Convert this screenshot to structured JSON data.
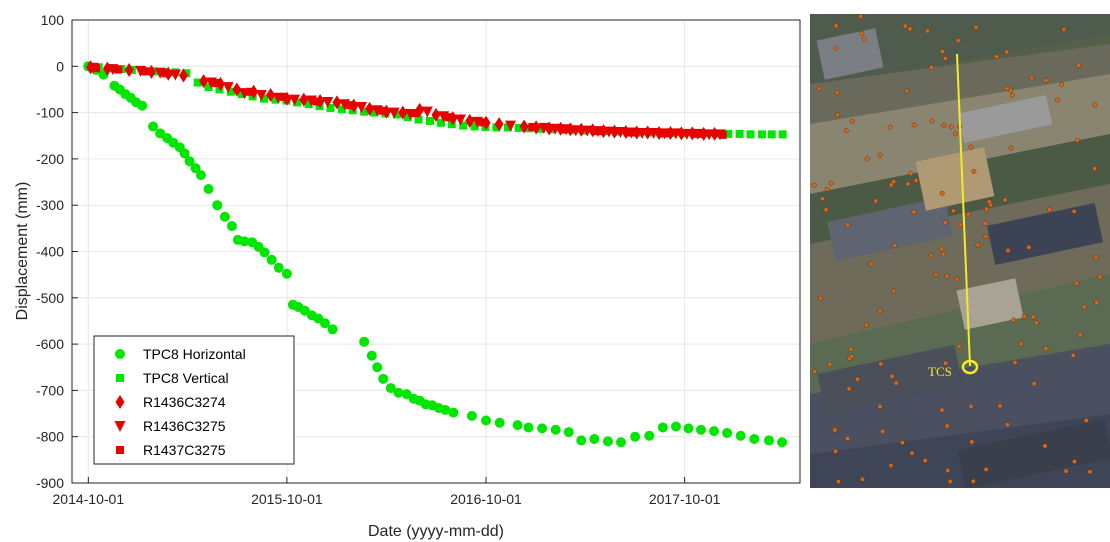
{
  "chart_data": {
    "type": "scatter",
    "title": "",
    "xlabel": "Date (yyyy-mm-dd)",
    "ylabel": "Displacement (mm)",
    "x_type": "date",
    "xlim": [
      "2014-09-01",
      "2018-05-01"
    ],
    "ylim": [
      -900,
      100
    ],
    "xticks": [
      "2014-10-01",
      "2015-10-01",
      "2016-10-01",
      "2017-10-01"
    ],
    "yticks": [
      100,
      0,
      -100,
      -200,
      -300,
      -400,
      -500,
      -600,
      -700,
      -800,
      -900
    ],
    "grid": true,
    "legend_position": "bottom-left",
    "series": [
      {
        "name": "TPC8 Horizontal",
        "marker": "circle",
        "color": "#00e600",
        "x": [
          "2014-10-01",
          "2014-10-15",
          "2014-10-29",
          "2014-11-18",
          "2014-11-28",
          "2014-12-08",
          "2014-12-18",
          "2014-12-28",
          "2015-01-08",
          "2015-01-28",
          "2015-02-10",
          "2015-02-23",
          "2015-03-06",
          "2015-03-18",
          "2015-03-27",
          "2015-04-05",
          "2015-04-16",
          "2015-04-26",
          "2015-05-10",
          "2015-05-26",
          "2015-06-09",
          "2015-06-22",
          "2015-07-03",
          "2015-07-15",
          "2015-07-29",
          "2015-08-10",
          "2015-08-21",
          "2015-09-03",
          "2015-09-16",
          "2015-10-01",
          "2015-10-12",
          "2015-10-22",
          "2015-11-03",
          "2015-11-16",
          "2015-11-28",
          "2015-12-10",
          "2015-12-24",
          "2016-02-20",
          "2016-03-05",
          "2016-03-15",
          "2016-03-26",
          "2016-04-09",
          "2016-04-23",
          "2016-05-08",
          "2016-05-21",
          "2016-06-01",
          "2016-06-12",
          "2016-06-24",
          "2016-07-06",
          "2016-07-18",
          "2016-08-02",
          "2016-09-05",
          "2016-10-01",
          "2016-10-26",
          "2016-11-28",
          "2016-12-18",
          "2017-01-12",
          "2017-02-06",
          "2017-03-02",
          "2017-03-25",
          "2017-04-18",
          "2017-05-13",
          "2017-06-06",
          "2017-07-02",
          "2017-07-28",
          "2017-08-22",
          "2017-09-15",
          "2017-10-08",
          "2017-10-31",
          "2017-11-24",
          "2017-12-18",
          "2018-01-12",
          "2018-02-06",
          "2018-03-05",
          "2018-03-29"
        ],
        "y": [
          0,
          -8,
          -18,
          -42,
          -50,
          -60,
          -68,
          -78,
          -85,
          -130,
          -145,
          -155,
          -165,
          -175,
          -188,
          -205,
          -220,
          -235,
          -265,
          -300,
          -325,
          -345,
          -375,
          -378,
          -380,
          -390,
          -402,
          -418,
          -435,
          -448,
          -515,
          -520,
          -528,
          -538,
          -545,
          -555,
          -568,
          -595,
          -625,
          -650,
          -675,
          -695,
          -705,
          -708,
          -718,
          -722,
          -730,
          -732,
          -738,
          -742,
          -748,
          -755,
          -765,
          -770,
          -775,
          -780,
          -782,
          -785,
          -790,
          -808,
          -805,
          -810,
          -812,
          -800,
          -798,
          -780,
          -778,
          -782,
          -785,
          -788,
          -792,
          -798,
          -805,
          -808,
          -812
        ]
      },
      {
        "name": "TPC8 Vertical",
        "marker": "square",
        "color": "#00e600",
        "x": [
          "2014-10-01",
          "2014-10-20",
          "2014-11-10",
          "2014-12-01",
          "2014-12-20",
          "2015-01-10",
          "2015-01-30",
          "2015-02-18",
          "2015-03-10",
          "2015-03-30",
          "2015-04-20",
          "2015-05-10",
          "2015-05-30",
          "2015-06-20",
          "2015-07-10",
          "2015-07-30",
          "2015-08-20",
          "2015-09-10",
          "2015-09-30",
          "2015-10-20",
          "2015-11-10",
          "2015-11-30",
          "2015-12-20",
          "2016-01-10",
          "2016-01-30",
          "2016-02-20",
          "2016-03-10",
          "2016-03-30",
          "2016-04-20",
          "2016-05-10",
          "2016-05-30",
          "2016-06-20",
          "2016-07-10",
          "2016-07-30",
          "2016-08-20",
          "2016-09-10",
          "2016-09-30",
          "2016-10-20",
          "2016-11-10",
          "2016-11-30",
          "2016-12-20",
          "2017-01-10",
          "2017-01-30",
          "2017-02-20",
          "2017-03-10",
          "2017-03-30",
          "2017-04-20",
          "2017-05-10",
          "2017-05-30",
          "2017-06-20",
          "2017-07-10",
          "2017-07-30",
          "2017-08-20",
          "2017-09-10",
          "2017-09-30",
          "2017-10-20",
          "2017-11-10",
          "2017-11-30",
          "2017-12-20",
          "2018-01-10",
          "2018-01-30",
          "2018-02-20",
          "2018-03-10",
          "2018-03-30"
        ],
        "y": [
          0,
          -2,
          -4,
          -6,
          -8,
          -10,
          -11,
          -12,
          -13,
          -15,
          -35,
          -45,
          -50,
          -55,
          -60,
          -65,
          -70,
          -72,
          -74,
          -78,
          -82,
          -86,
          -90,
          -93,
          -95,
          -98,
          -100,
          -102,
          -104,
          -110,
          -115,
          -118,
          -122,
          -125,
          -128,
          -130,
          -131,
          -132,
          -132,
          -133,
          -134,
          -135,
          -136,
          -137,
          -138,
          -139,
          -140,
          -140,
          -141,
          -142,
          -143,
          -143,
          -144,
          -144,
          -145,
          -145,
          -145,
          -146,
          -146,
          -146,
          -147,
          -147,
          -147,
          -147
        ]
      },
      {
        "name": "R1436C3274",
        "marker": "diamond",
        "color": "#e60000",
        "x": [
          "2014-10-05",
          "2014-11-05",
          "2014-12-15",
          "2015-01-25",
          "2015-02-25",
          "2015-03-25",
          "2015-05-01",
          "2015-06-01",
          "2015-07-01",
          "2015-08-01",
          "2015-09-01",
          "2015-10-01",
          "2015-11-01",
          "2015-12-01",
          "2016-01-01",
          "2016-02-01",
          "2016-03-01",
          "2016-04-01",
          "2016-05-01",
          "2016-06-01",
          "2016-07-01",
          "2016-08-01",
          "2016-09-01",
          "2016-10-01",
          "2016-10-25",
          "2016-12-10",
          "2017-01-01",
          "2017-01-25",
          "2017-02-15",
          "2017-03-05",
          "2017-03-25",
          "2017-04-15",
          "2017-05-05",
          "2017-05-25",
          "2017-06-15",
          "2017-07-05",
          "2017-07-25",
          "2017-08-15",
          "2017-09-05",
          "2017-09-25",
          "2017-10-15",
          "2017-11-05",
          "2017-11-25"
        ],
        "y": [
          -2,
          -5,
          -8,
          -12,
          -16,
          -20,
          -32,
          -38,
          -50,
          -55,
          -62,
          -70,
          -72,
          -75,
          -78,
          -85,
          -92,
          -98,
          -100,
          -94,
          -105,
          -112,
          -118,
          -122,
          -125,
          -130,
          -132,
          -134,
          -135,
          -136,
          -137,
          -138,
          -140,
          -141,
          -142,
          -143,
          -143,
          -144,
          -144,
          -145,
          -145,
          -146,
          -146
        ]
      },
      {
        "name": "R1436C3275",
        "marker": "triangle-down",
        "color": "#e60000",
        "x": [
          "2014-10-10",
          "2014-11-15",
          "2015-01-05",
          "2015-02-10",
          "2015-03-10",
          "2015-05-15",
          "2015-06-15",
          "2015-07-15",
          "2015-08-15",
          "2015-09-15",
          "2015-10-15",
          "2015-11-15",
          "2015-12-15",
          "2016-01-15",
          "2016-02-15",
          "2016-03-15",
          "2016-04-15",
          "2016-05-15",
          "2016-06-15",
          "2016-07-15",
          "2016-08-15",
          "2016-09-15",
          "2016-11-15",
          "2017-01-15",
          "2017-02-05",
          "2017-02-25",
          "2017-03-15",
          "2017-04-05",
          "2017-04-25",
          "2017-05-15",
          "2017-06-05",
          "2017-06-25",
          "2017-07-15",
          "2017-08-05",
          "2017-08-25",
          "2017-09-15",
          "2017-10-05",
          "2017-10-25",
          "2017-11-15",
          "2017-12-05"
        ],
        "y": [
          -3,
          -6,
          -10,
          -14,
          -18,
          -35,
          -45,
          -58,
          -62,
          -68,
          -72,
          -74,
          -77,
          -82,
          -88,
          -95,
          -100,
          -103,
          -98,
          -108,
          -115,
          -120,
          -128,
          -133,
          -135,
          -136,
          -138,
          -139,
          -140,
          -141,
          -142,
          -143,
          -144,
          -144,
          -145,
          -145,
          -146,
          -146,
          -147,
          -147
        ]
      },
      {
        "name": "R1437C3275",
        "marker": "square",
        "color": "#e60000",
        "x": [
          "2014-10-15",
          "2014-11-25",
          "2015-01-15",
          "2015-02-20",
          "2015-05-25",
          "2015-07-25",
          "2015-09-25",
          "2015-11-25",
          "2016-01-25",
          "2016-03-25",
          "2016-05-25",
          "2016-07-25",
          "2016-09-25",
          "2016-12-25",
          "2017-02-25",
          "2017-04-25",
          "2017-06-25",
          "2017-08-25",
          "2017-10-25",
          "2017-12-10"
        ],
        "y": [
          -4,
          -7,
          -11,
          -15,
          -36,
          -55,
          -66,
          -76,
          -84,
          -96,
          -101,
          -110,
          -121,
          -131,
          -136,
          -140,
          -143,
          -145,
          -146,
          -148
        ]
      }
    ]
  },
  "photo": {
    "annotation_label": "TCS",
    "colors": {
      "line": "#f2ea2a",
      "dots": "#d2691e"
    }
  }
}
